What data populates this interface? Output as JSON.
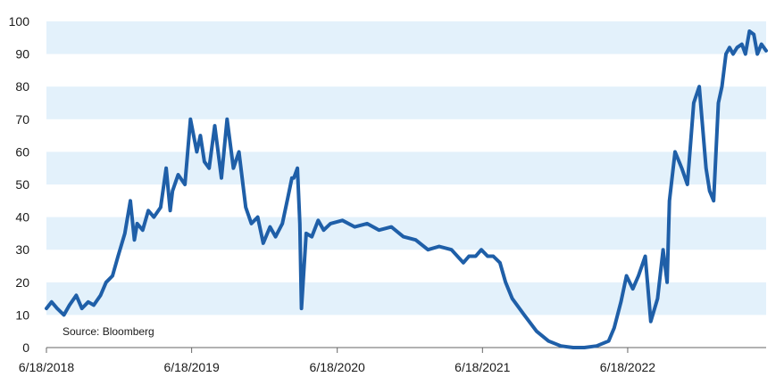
{
  "chart_data": {
    "type": "line",
    "source_note": "Source: Bloomberg",
    "ylim": [
      0,
      100
    ],
    "yticks": [
      "0",
      "10",
      "20",
      "30",
      "40",
      "50",
      "60",
      "70",
      "80",
      "90",
      "100"
    ],
    "xticks": [
      "6/18/2018",
      "6/18/2019",
      "6/18/2020",
      "6/18/2021",
      "6/18/2022"
    ],
    "x_start": "2018-06-18",
    "x_end": "2023-06-01",
    "grid": "alternating horizontal bands",
    "band_color": "#e3f1fb",
    "line_color": "#1f5fa8",
    "series": [
      {
        "x": [
          "2018-06-18",
          "2018-07-01",
          "2018-07-15",
          "2018-08-01",
          "2018-08-15",
          "2018-09-01",
          "2018-09-15",
          "2018-10-01",
          "2018-10-15",
          "2018-11-01",
          "2018-11-15",
          "2018-12-01",
          "2018-12-15",
          "2019-01-01",
          "2019-01-15",
          "2019-01-25",
          "2019-02-01",
          "2019-02-15",
          "2019-03-01",
          "2019-03-15",
          "2019-04-01",
          "2019-04-15",
          "2019-04-25",
          "2019-05-01",
          "2019-05-15",
          "2019-06-01",
          "2019-06-15",
          "2019-07-01",
          "2019-07-10",
          "2019-07-20",
          "2019-08-01",
          "2019-08-15",
          "2019-09-01",
          "2019-09-15",
          "2019-10-01",
          "2019-10-15",
          "2019-11-01",
          "2019-11-15",
          "2019-12-01",
          "2019-12-15",
          "2020-01-01",
          "2020-01-15",
          "2020-02-01",
          "2020-02-15",
          "2020-02-25",
          "2020-03-01",
          "2020-03-10",
          "2020-03-16",
          "2020-03-20",
          "2020-04-01",
          "2020-04-15",
          "2020-05-01",
          "2020-05-15",
          "2020-06-01",
          "2020-07-01",
          "2020-08-01",
          "2020-09-01",
          "2020-10-01",
          "2020-11-01",
          "2020-12-01",
          "2021-01-01",
          "2021-02-01",
          "2021-03-01",
          "2021-04-01",
          "2021-05-01",
          "2021-05-15",
          "2021-06-01",
          "2021-06-15",
          "2021-07-01",
          "2021-07-15",
          "2021-08-01",
          "2021-08-15",
          "2021-09-01",
          "2021-10-01",
          "2021-11-01",
          "2021-12-01",
          "2022-01-01",
          "2022-02-01",
          "2022-03-01",
          "2022-04-01",
          "2022-05-01",
          "2022-05-15",
          "2022-06-01",
          "2022-06-15",
          "2022-07-01",
          "2022-07-15",
          "2022-08-01",
          "2022-08-15",
          "2022-09-01",
          "2022-09-15",
          "2022-09-25",
          "2022-10-01",
          "2022-10-15",
          "2022-11-01",
          "2022-11-15",
          "2022-12-01",
          "2022-12-15",
          "2023-01-01",
          "2023-01-10",
          "2023-01-20",
          "2023-02-01",
          "2023-02-10",
          "2023-02-20",
          "2023-03-01",
          "2023-03-10",
          "2023-03-20",
          "2023-04-01",
          "2023-04-10",
          "2023-04-20",
          "2023-05-01",
          "2023-05-10",
          "2023-05-20",
          "2023-06-01"
        ],
        "y": [
          12,
          14,
          12,
          10,
          13,
          16,
          12,
          14,
          13,
          16,
          20,
          22,
          28,
          35,
          45,
          33,
          38,
          36,
          42,
          40,
          43,
          55,
          42,
          48,
          53,
          50,
          70,
          60,
          65,
          57,
          55,
          68,
          52,
          70,
          55,
          60,
          43,
          38,
          40,
          32,
          37,
          34,
          38,
          46,
          52,
          52,
          55,
          38,
          12,
          35,
          34,
          39,
          36,
          38,
          39,
          37,
          38,
          36,
          37,
          34,
          33,
          30,
          31,
          30,
          26,
          28,
          28,
          30,
          28,
          28,
          26,
          20,
          15,
          10,
          5,
          2,
          0.5,
          0,
          0,
          0.5,
          2,
          6,
          14,
          22,
          18,
          22,
          28,
          8,
          15,
          30,
          20,
          45,
          60,
          55,
          50,
          75,
          80,
          55,
          48,
          45,
          75,
          80,
          90,
          92,
          90,
          92,
          93,
          90,
          97,
          96,
          90,
          93,
          91
        ]
      }
    ]
  }
}
